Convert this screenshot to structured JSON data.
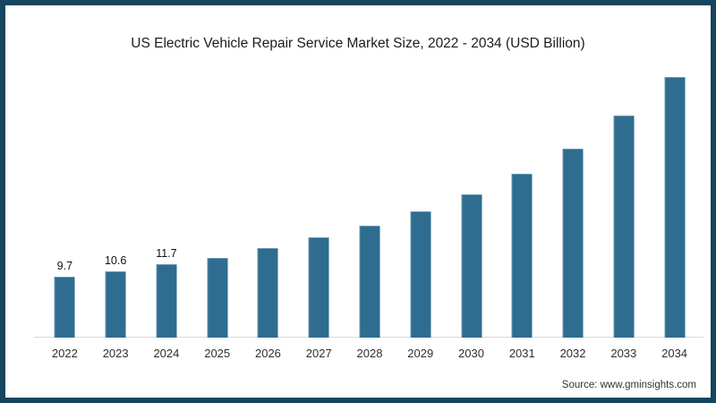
{
  "page": {
    "source": "Source: www.gminsights.com"
  },
  "colors": {
    "background": "#ffffff",
    "page_border": "#15455f",
    "bar": "#2e6d90",
    "axis_line": "#d9d9d9",
    "title_text": "#1c1c1c",
    "tick_text": "#2e2e2e",
    "value_label_text": "#111111",
    "source_text": "#333333"
  },
  "chart_data": {
    "type": "bar",
    "title": "US Electric Vehicle Repair Service Market Size, 2022 - 2034 (USD Billion)",
    "xlabel": "",
    "ylabel": "",
    "categories": [
      "2022",
      "2023",
      "2024",
      "2025",
      "2026",
      "2027",
      "2028",
      "2029",
      "2030",
      "2031",
      "2032",
      "2033",
      "2034"
    ],
    "values": [
      9.7,
      10.6,
      11.7,
      12.7,
      14.3,
      16.0,
      17.9,
      20.2,
      22.9,
      26.2,
      30.2,
      35.4,
      41.6
    ],
    "bar_labels": [
      "9.7",
      "10.6",
      "11.7",
      "",
      "",
      "",
      "",
      "",
      "",
      "",
      "",
      "",
      ""
    ],
    "ylim": [
      0,
      43
    ],
    "y_axis_visible": false,
    "grid": false,
    "legend": "none",
    "units": "USD Billion"
  }
}
